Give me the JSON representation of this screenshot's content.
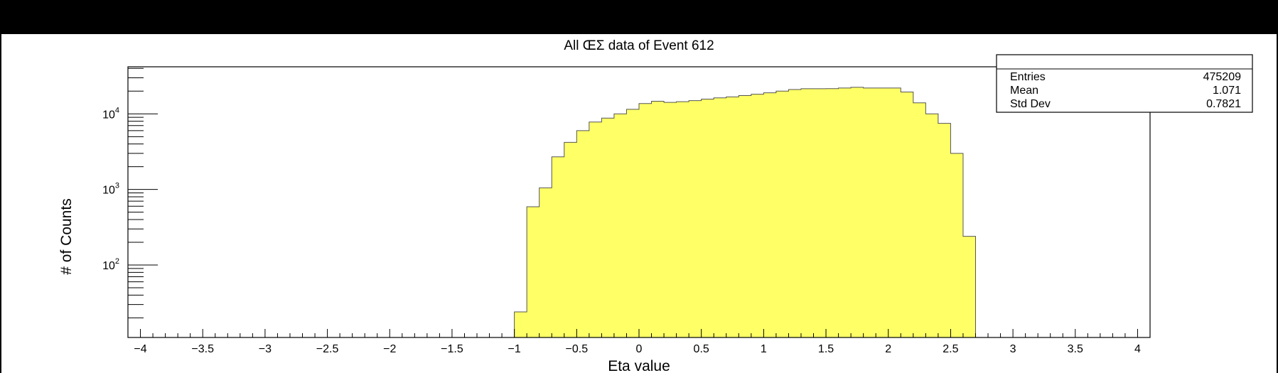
{
  "chart_data": {
    "type": "bar",
    "title": "All ŒΣ data of Event 612",
    "xlabel": "Eta value",
    "ylabel": "# of Counts",
    "xlim": [
      -4.1,
      4.1
    ],
    "ylim": [
      11,
      42000
    ],
    "y_scale": "log",
    "fill_color": "#ffff66",
    "line_color": "#555555",
    "x_ticks": [
      {
        "value": -4,
        "label": "−4"
      },
      {
        "value": -3.5,
        "label": "−3.5"
      },
      {
        "value": -3,
        "label": "−3"
      },
      {
        "value": -2.5,
        "label": "−2.5"
      },
      {
        "value": -2,
        "label": "−2"
      },
      {
        "value": -1.5,
        "label": "−1.5"
      },
      {
        "value": -1,
        "label": "−1"
      },
      {
        "value": -0.5,
        "label": "−0.5"
      },
      {
        "value": 0,
        "label": "0"
      },
      {
        "value": 0.5,
        "label": "0.5"
      },
      {
        "value": 1,
        "label": "1"
      },
      {
        "value": 1.5,
        "label": "1.5"
      },
      {
        "value": 2,
        "label": "2"
      },
      {
        "value": 2.5,
        "label": "2.5"
      },
      {
        "value": 3,
        "label": "3"
      },
      {
        "value": 3.5,
        "label": "3.5"
      },
      {
        "value": 4,
        "label": "4"
      }
    ],
    "y_ticks": [
      {
        "value": 100,
        "base": "10",
        "exp": "2"
      },
      {
        "value": 1000,
        "base": "10",
        "exp": "3"
      },
      {
        "value": 10000,
        "base": "10",
        "exp": "4"
      }
    ],
    "bin_width": 0.1,
    "bins": [
      {
        "x": -1.0,
        "y": 24
      },
      {
        "x": -0.9,
        "y": 590
      },
      {
        "x": -0.8,
        "y": 1050
      },
      {
        "x": -0.7,
        "y": 2700
      },
      {
        "x": -0.6,
        "y": 4200
      },
      {
        "x": -0.5,
        "y": 6000
      },
      {
        "x": -0.4,
        "y": 7800
      },
      {
        "x": -0.3,
        "y": 8800
      },
      {
        "x": -0.2,
        "y": 10000
      },
      {
        "x": -0.1,
        "y": 11500
      },
      {
        "x": 0.0,
        "y": 13700
      },
      {
        "x": 0.1,
        "y": 14700
      },
      {
        "x": 0.2,
        "y": 14200
      },
      {
        "x": 0.3,
        "y": 14500
      },
      {
        "x": 0.4,
        "y": 15000
      },
      {
        "x": 0.5,
        "y": 15700
      },
      {
        "x": 0.6,
        "y": 16300
      },
      {
        "x": 0.7,
        "y": 16800
      },
      {
        "x": 0.8,
        "y": 17500
      },
      {
        "x": 0.9,
        "y": 18200
      },
      {
        "x": 1.0,
        "y": 19000
      },
      {
        "x": 1.1,
        "y": 20000
      },
      {
        "x": 1.2,
        "y": 21000
      },
      {
        "x": 1.3,
        "y": 21500
      },
      {
        "x": 1.4,
        "y": 21500
      },
      {
        "x": 1.5,
        "y": 21600
      },
      {
        "x": 1.6,
        "y": 22000
      },
      {
        "x": 1.7,
        "y": 22500
      },
      {
        "x": 1.8,
        "y": 22000
      },
      {
        "x": 1.9,
        "y": 22000
      },
      {
        "x": 2.0,
        "y": 22000
      },
      {
        "x": 2.1,
        "y": 19500
      },
      {
        "x": 2.2,
        "y": 14000
      },
      {
        "x": 2.3,
        "y": 10000
      },
      {
        "x": 2.4,
        "y": 7500
      },
      {
        "x": 2.5,
        "y": 3000
      },
      {
        "x": 2.6,
        "y": 240
      }
    ],
    "stats_box": {
      "rows": [
        {
          "label": "Entries",
          "value": "475209"
        },
        {
          "label": "Mean",
          "value": "1.071"
        },
        {
          "label": "Std Dev",
          "value": "0.7821"
        }
      ]
    }
  }
}
